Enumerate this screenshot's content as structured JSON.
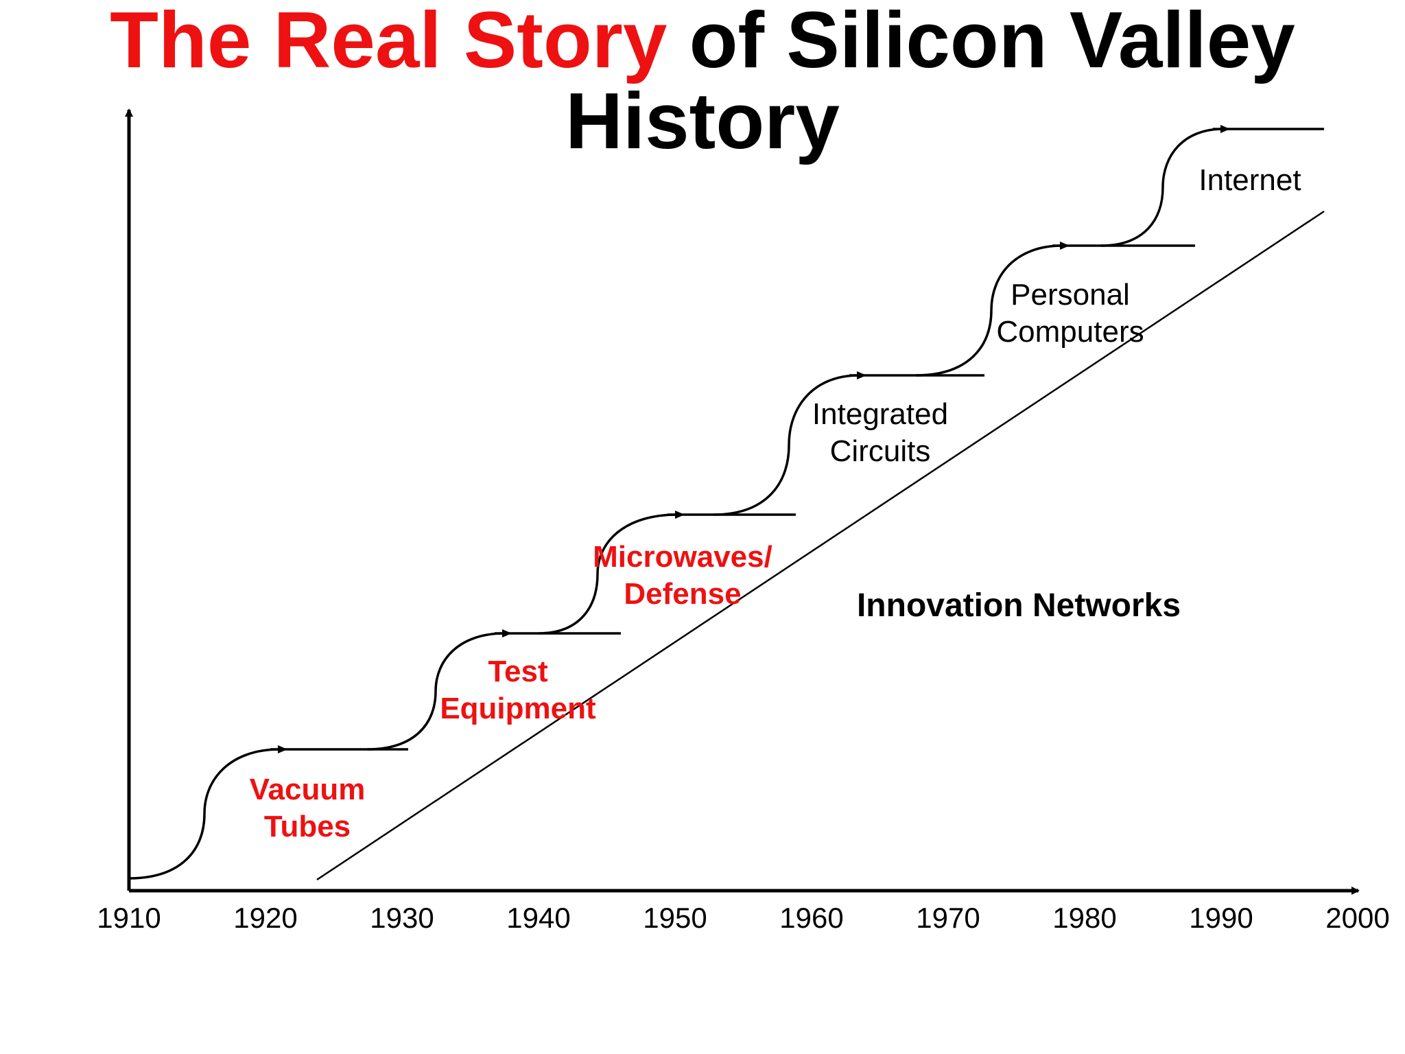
{
  "title": {
    "accent": "The Real Story",
    "rest": " of Silicon Valley",
    "line2": "History"
  },
  "colors": {
    "accent": "#ee1111",
    "ink": "#000000"
  },
  "axis": {
    "x_ticks": [
      "1910",
      "1920",
      "1930",
      "1940",
      "1950",
      "1960",
      "1970",
      "1980",
      "1990",
      "2000"
    ]
  },
  "eras": [
    {
      "lines": [
        "Vacuum",
        "Tubes"
      ],
      "color": "red"
    },
    {
      "lines": [
        "Test",
        "Equipment"
      ],
      "color": "red"
    },
    {
      "lines": [
        "Microwaves/",
        "Defense"
      ],
      "color": "red"
    },
    {
      "lines": [
        "Integrated",
        "Circuits"
      ],
      "color": "black"
    },
    {
      "lines": [
        "Personal",
        "Computers"
      ],
      "color": "black"
    },
    {
      "lines": [
        "Internet"
      ],
      "color": "black"
    }
  ],
  "trend_label": "Innovation Networks"
}
